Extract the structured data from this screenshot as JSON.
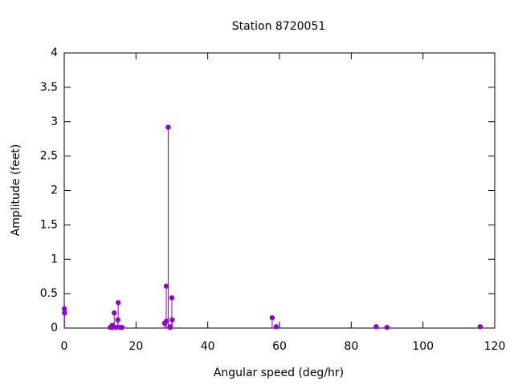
{
  "chart_data": {
    "type": "impulse",
    "title": "Station 8720051",
    "x_label": "Angular speed (deg/hr)",
    "y_label": "Amplitude (feet)",
    "x": [
      0.04,
      0.08,
      12.85,
      13.4,
      13.47,
      13.94,
      14.5,
      14.96,
      15.04,
      15.6,
      16.1,
      27.97,
      28.44,
      28.51,
      28.98,
      29.46,
      29.53,
      30.0,
      30.08,
      57.97,
      59.07,
      86.95,
      89.97,
      115.94
    ],
    "values": [
      0.28,
      0.22,
      0.01,
      0.04,
      0.01,
      0.22,
      0.01,
      0.12,
      0.37,
      0.01,
      0.01,
      0.07,
      0.61,
      0.1,
      2.92,
      0.02,
      0.01,
      0.44,
      0.12,
      0.15,
      0.02,
      0.02,
      0.01,
      0.02
    ],
    "color": "#9400d3",
    "xlim": [
      0,
      120
    ],
    "xticks": [
      0,
      20,
      40,
      60,
      80,
      100,
      120
    ],
    "ylim": [
      0,
      4
    ],
    "yticks": [
      0,
      0.5,
      1,
      1.5,
      2,
      2.5,
      3,
      3.5,
      4
    ]
  }
}
